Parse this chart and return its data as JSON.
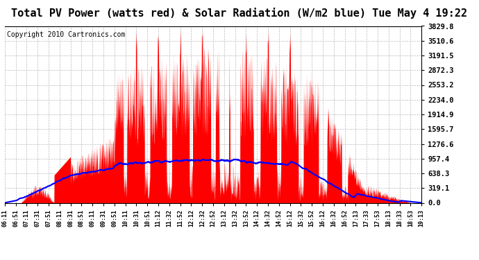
{
  "title": "Total PV Power (watts red) & Solar Radiation (W/m2 blue) Tue May 4 19:22",
  "copyright": "Copyright 2010 Cartronics.com",
  "yticks": [
    0.0,
    319.1,
    638.3,
    957.4,
    1276.6,
    1595.7,
    1914.9,
    2234.0,
    2553.2,
    2872.3,
    3191.5,
    3510.6,
    3829.8
  ],
  "ymax": 3829.8,
  "ymin": 0.0,
  "xtick_labels": [
    "06:11",
    "06:51",
    "07:11",
    "07:31",
    "07:51",
    "08:11",
    "08:31",
    "08:51",
    "09:11",
    "09:31",
    "09:51",
    "10:11",
    "10:31",
    "10:51",
    "11:12",
    "11:32",
    "11:52",
    "12:12",
    "12:32",
    "12:52",
    "13:12",
    "13:32",
    "13:52",
    "14:12",
    "14:32",
    "14:52",
    "15:12",
    "15:32",
    "15:52",
    "16:12",
    "16:32",
    "16:52",
    "17:13",
    "17:33",
    "17:53",
    "18:13",
    "18:33",
    "18:53",
    "19:13"
  ],
  "bg_color": "#ffffff",
  "grid_color": "#aaaaaa",
  "pv_color": "#ff0000",
  "solar_color": "#0000ff",
  "title_fontsize": 11,
  "copyright_fontsize": 7
}
